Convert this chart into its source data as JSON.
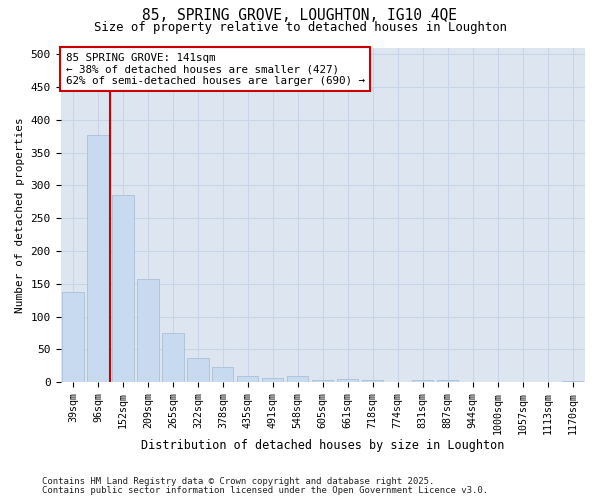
{
  "title_line1": "85, SPRING GROVE, LOUGHTON, IG10 4QE",
  "title_line2": "Size of property relative to detached houses in Loughton",
  "xlabel": "Distribution of detached houses by size in Loughton",
  "ylabel": "Number of detached properties",
  "categories": [
    "39sqm",
    "96sqm",
    "152sqm",
    "209sqm",
    "265sqm",
    "322sqm",
    "378sqm",
    "435sqm",
    "491sqm",
    "548sqm",
    "605sqm",
    "661sqm",
    "718sqm",
    "774sqm",
    "831sqm",
    "887sqm",
    "944sqm",
    "1000sqm",
    "1057sqm",
    "1113sqm",
    "1170sqm"
  ],
  "values": [
    137,
    377,
    286,
    158,
    75,
    37,
    23,
    9,
    6,
    9,
    3,
    5,
    4,
    1,
    3,
    3,
    1,
    0,
    1,
    0,
    2
  ],
  "bar_color": "#c8daf0",
  "bar_edge_color": "#aabfd8",
  "grid_color": "#c8d4e8",
  "bg_color": "#dde6f0",
  "fig_color": "#ffffff",
  "vline_color": "#cc0000",
  "vline_x_index": 2,
  "annotation_text": "85 SPRING GROVE: 141sqm\n← 38% of detached houses are smaller (427)\n62% of semi-detached houses are larger (690) →",
  "annotation_box_facecolor": "#ffffff",
  "annotation_box_edgecolor": "#cc0000",
  "ylim": [
    0,
    510
  ],
  "yticks": [
    0,
    50,
    100,
    150,
    200,
    250,
    300,
    350,
    400,
    450,
    500
  ],
  "footer_line1": "Contains HM Land Registry data © Crown copyright and database right 2025.",
  "footer_line2": "Contains public sector information licensed under the Open Government Licence v3.0."
}
